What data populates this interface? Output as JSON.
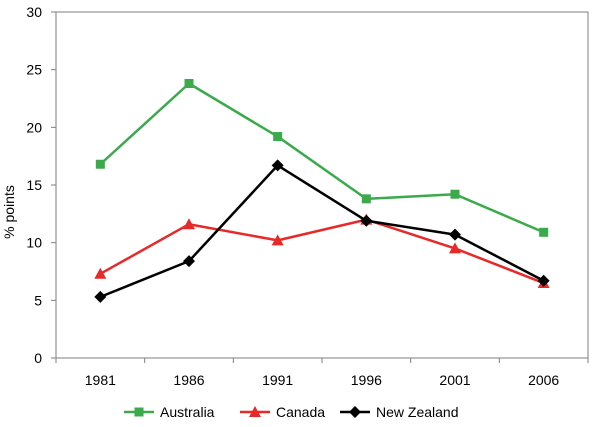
{
  "chart_data": {
    "type": "line",
    "title": "",
    "xlabel": "",
    "ylabel": "% points",
    "categories": [
      "1981",
      "1986",
      "1991",
      "1996",
      "2001",
      "2006"
    ],
    "ylim": [
      0,
      30
    ],
    "yticks": [
      0,
      5,
      10,
      15,
      20,
      25,
      30
    ],
    "grid": false,
    "legend_position": "bottom",
    "series": [
      {
        "name": "Australia",
        "color": "#3aaa4a",
        "marker": "square",
        "values": [
          16.8,
          23.8,
          19.2,
          13.8,
          14.2,
          10.9
        ]
      },
      {
        "name": "Canada",
        "color": "#e8292a",
        "marker": "triangle",
        "values": [
          7.3,
          11.6,
          10.2,
          12.0,
          9.5,
          6.5
        ]
      },
      {
        "name": "New Zealand",
        "color": "#000000",
        "marker": "diamond",
        "values": [
          5.3,
          8.4,
          16.7,
          11.9,
          10.7,
          6.7
        ]
      }
    ]
  }
}
